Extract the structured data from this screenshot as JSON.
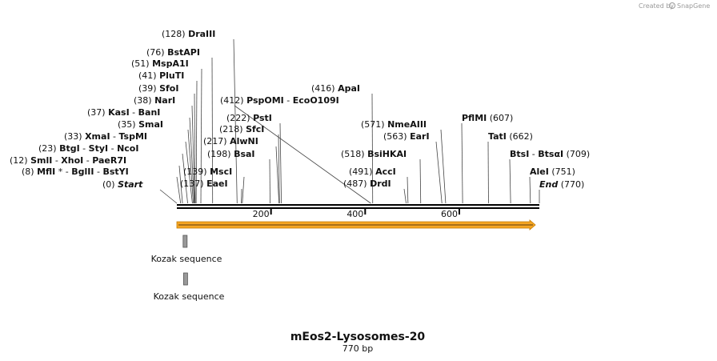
{
  "header": {
    "credit_prefix": "Created by",
    "credit_brand": "SnapGene"
  },
  "sequence": {
    "name": "mEos2-Lysosomes-20",
    "length_label": "770 bp",
    "length_bp": 770
  },
  "ruler": {
    "ticks": [
      {
        "bp": 200,
        "label": "200"
      },
      {
        "bp": 400,
        "label": "400"
      },
      {
        "bp": 600,
        "label": "600"
      }
    ]
  },
  "features": [
    {
      "name": "orf-arrow",
      "start": 1,
      "end": 770,
      "color": "#f5a623"
    },
    {
      "name": "kozak-1",
      "label": "Kozak sequence",
      "start": 15,
      "end": 24,
      "color": "#999999"
    },
    {
      "name": "kozak-2",
      "label": "Kozak sequence",
      "start": 16,
      "end": 25,
      "color": "#999999"
    }
  ],
  "sites": [
    {
      "pos": "(128)",
      "parts": [
        "DraIII"
      ],
      "cut": 128
    },
    {
      "pos": "(76)",
      "parts": [
        "BstAPI"
      ],
      "cut": 76
    },
    {
      "pos": "(51)",
      "parts": [
        "MspA1I"
      ],
      "cut": 51
    },
    {
      "pos": "(41)",
      "parts": [
        "PluTI"
      ],
      "cut": 41
    },
    {
      "pos": "(39)",
      "parts": [
        "SfoI"
      ],
      "cut": 39
    },
    {
      "pos": "(38)",
      "parts": [
        "NarI"
      ],
      "cut": 38
    },
    {
      "pos": "(37)",
      "parts": [
        "KasI",
        " - ",
        "BanI"
      ],
      "cut": 37
    },
    {
      "pos": "(35)",
      "parts": [
        "SmaI"
      ],
      "cut": 35
    },
    {
      "pos": "(33)",
      "parts": [
        "XmaI",
        "  - ",
        "TspMI"
      ],
      "cut": 33
    },
    {
      "pos": "(23)",
      "parts": [
        "BtgI",
        " - ",
        "StyI",
        "  - ",
        "NcoI"
      ],
      "cut": 23
    },
    {
      "pos": "(12)",
      "parts": [
        "SmlI",
        "  - ",
        "XhoI",
        "  - ",
        "PaeR7I"
      ],
      "cut": 12
    },
    {
      "pos": "(8)",
      "parts": [
        "MflI",
        " * - ",
        "BglII",
        "  - ",
        "BstYI"
      ],
      "cut": 8
    },
    {
      "pos": "(0)",
      "parts": [
        "Start"
      ],
      "cut": 0,
      "italic": true
    },
    {
      "pos": "(412)",
      "parts": [
        "PspOMI",
        "  - ",
        "EcoO109I"
      ],
      "cut": 412
    },
    {
      "pos": "(222)",
      "parts": [
        "PstI"
      ],
      "cut": 222
    },
    {
      "pos": "(218)",
      "parts": [
        "SfcI"
      ],
      "cut": 218
    },
    {
      "pos": "(217)",
      "parts": [
        "AlwNI"
      ],
      "cut": 217
    },
    {
      "pos": "(198)",
      "parts": [
        "BsaI"
      ],
      "cut": 198
    },
    {
      "pos": "(139)",
      "parts": [
        "MscI"
      ],
      "cut": 139
    },
    {
      "pos": "(137)",
      "parts": [
        "EaeI"
      ],
      "cut": 137
    },
    {
      "pos": "(416)",
      "parts": [
        "ApaI"
      ],
      "cut": 416
    },
    {
      "pos": "(571)",
      "parts": [
        "NmeAIII"
      ],
      "cut": 571
    },
    {
      "pos": "(563)",
      "parts": [
        "EarI"
      ],
      "cut": 563
    },
    {
      "pos": "(518)",
      "parts": [
        "BsiHKAI"
      ],
      "cut": 518
    },
    {
      "pos": "(491)",
      "parts": [
        "AccI"
      ],
      "cut": 491
    },
    {
      "pos": "(487)",
      "parts": [
        "DrdI"
      ],
      "cut": 487
    },
    {
      "pos": "(607)",
      "parts": [
        "PflMI"
      ],
      "cut": 607,
      "pos_after": true
    },
    {
      "pos": "(662)",
      "parts": [
        "TatI"
      ],
      "cut": 662,
      "pos_after": true
    },
    {
      "pos": "(709)",
      "parts": [
        "BtsI",
        " - ",
        "BtsαI"
      ],
      "cut": 709,
      "pos_after": true
    },
    {
      "pos": "(751)",
      "parts": [
        "AleI"
      ],
      "cut": 751,
      "pos_after": true
    },
    {
      "pos": "(770)",
      "parts": [
        "End"
      ],
      "cut": 770,
      "pos_after": true,
      "italic": true
    }
  ]
}
